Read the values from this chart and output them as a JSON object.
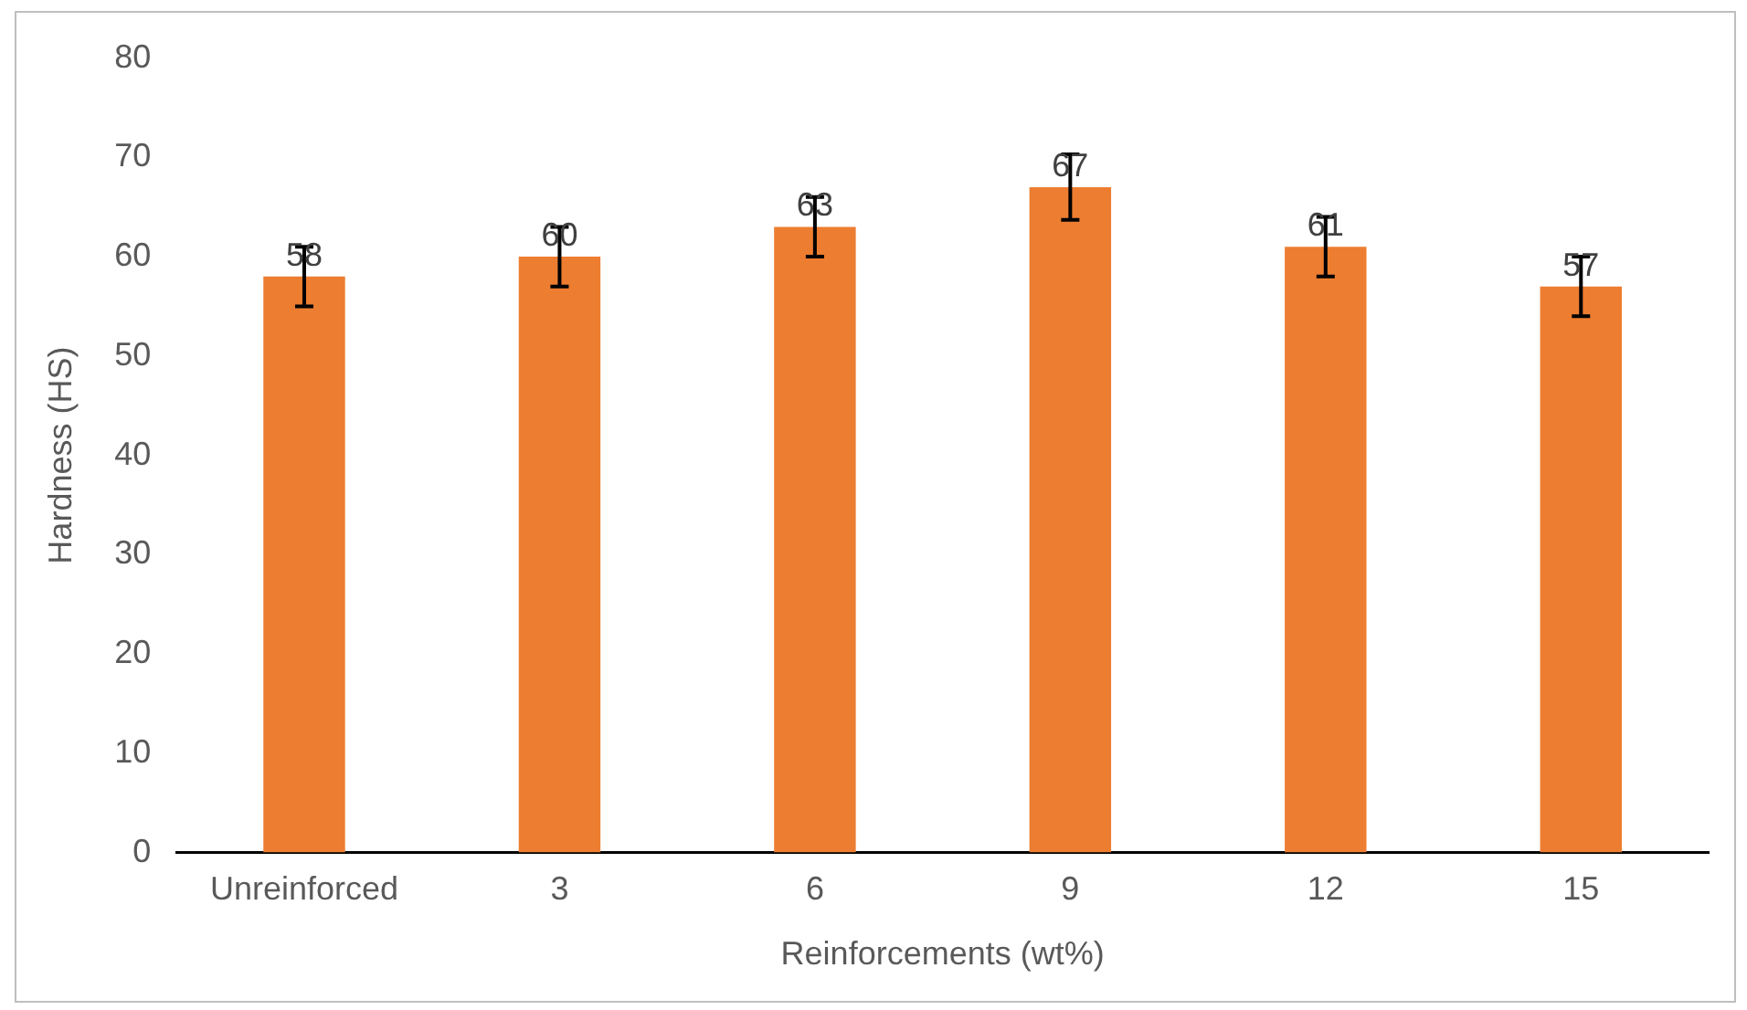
{
  "chart_data": {
    "type": "bar",
    "xlabel": "Reinforcements (wt%)",
    "ylabel": "Hardness (HS)",
    "categories": [
      "Unreinforced",
      "3",
      "6",
      "9",
      "12",
      "15"
    ],
    "values": [
      58,
      60,
      63,
      67,
      61,
      57
    ],
    "errors": [
      3,
      3,
      3,
      3.3,
      3,
      3
    ],
    "color": "#ed7d31",
    "ylim": [
      0,
      80
    ],
    "yticks": [
      0,
      10,
      20,
      30,
      40,
      50,
      60,
      70,
      80
    ],
    "grid": false,
    "legend": false,
    "data_labels": true
  }
}
